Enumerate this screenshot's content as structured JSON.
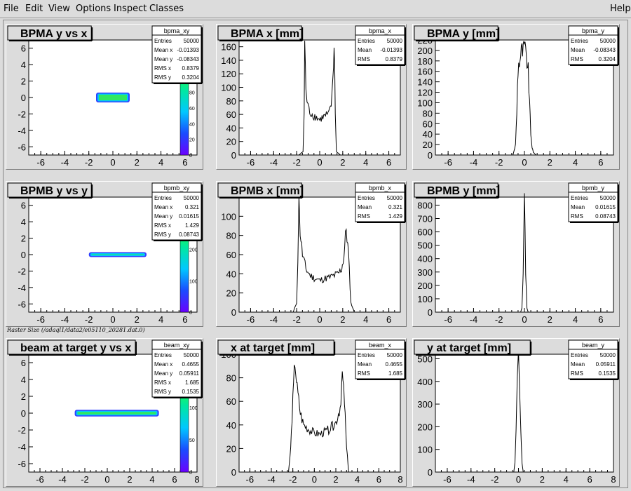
{
  "menu": {
    "file": "File",
    "edit": "Edit",
    "view": "View",
    "options": "Options",
    "inspect": "Inspect",
    "classes": "Classes",
    "help": "Help"
  },
  "canvas_label": "Raster Size (/adaql1/data2/e05110_20281.dat.0)",
  "colors": {
    "pad_bg": "#dcdcdc",
    "frame_bg": "#ffffff",
    "line": "#000000"
  },
  "chart_data": [
    {
      "type": "heatmap",
      "title": "BPMA y vs x",
      "stats_name": "bpma_xy",
      "stats": [
        [
          "Entries",
          "50000"
        ],
        [
          "Mean x",
          "-0.01393"
        ],
        [
          "Mean y",
          "-0.08343"
        ],
        [
          "RMS x",
          "0.8379"
        ],
        [
          "RMS y",
          "0.3204"
        ]
      ],
      "xlim": [
        -7,
        7
      ],
      "ylim": [
        -7,
        7
      ],
      "xticks": [
        "-6",
        "-4",
        "-2",
        "0",
        "2",
        "4",
        "6"
      ],
      "yticks": [
        "-6",
        "-4",
        "-2",
        "0",
        "2",
        "4",
        "6"
      ],
      "blob": {
        "x": [
          -1.4,
          1.4
        ],
        "y": [
          -0.6,
          0.6
        ]
      },
      "palette_ticks": [
        "0",
        "20",
        "40",
        "60",
        "80",
        "100",
        "120"
      ]
    },
    {
      "type": "line",
      "title": "BPMA x [mm]",
      "stats_name": "bpma_x",
      "stats": [
        [
          "Entries",
          "50000"
        ],
        [
          "Mean",
          "-0.01393"
        ],
        [
          "RMS",
          "0.8379"
        ]
      ],
      "xlim": [
        -7,
        7
      ],
      "ylim": [
        0,
        170
      ],
      "xticks": [
        "-6",
        "-4",
        "-2",
        "0",
        "2",
        "4",
        "6"
      ],
      "yticks": [
        "0",
        "20",
        "40",
        "60",
        "80",
        "100",
        "120",
        "140",
        "160"
      ],
      "x": [
        -7,
        -1.8,
        -1.45,
        -1.35,
        -1.3,
        -1.25,
        -1.2,
        -1.1,
        -1.0,
        -0.8,
        -0.5,
        -0.2,
        0,
        0.2,
        0.5,
        0.8,
        1.0,
        1.1,
        1.2,
        1.25,
        1.3,
        1.35,
        1.45,
        1.8,
        7
      ],
      "y": [
        0,
        0,
        5,
        60,
        165,
        130,
        100,
        80,
        70,
        62,
        58,
        55,
        52,
        55,
        58,
        60,
        75,
        95,
        130,
        160,
        140,
        60,
        5,
        0,
        0
      ]
    },
    {
      "type": "line",
      "title": "BPMA y [mm]",
      "stats_name": "bpma_y",
      "stats": [
        [
          "Entries",
          "50000"
        ],
        [
          "Mean",
          "-0.08343"
        ],
        [
          "RMS",
          "0.3204"
        ]
      ],
      "xlim": [
        -7,
        7
      ],
      "ylim": [
        0,
        220
      ],
      "xticks": [
        "-6",
        "-4",
        "-2",
        "0",
        "2",
        "4",
        "6"
      ],
      "yticks": [
        "0",
        "20",
        "40",
        "60",
        "80",
        "100",
        "120",
        "140",
        "160",
        "180",
        "200",
        "220"
      ],
      "x": [
        -7,
        -0.9,
        -0.7,
        -0.6,
        -0.55,
        -0.5,
        -0.4,
        -0.3,
        -0.2,
        -0.1,
        0,
        0.1,
        0.2,
        0.3,
        0.4,
        0.5,
        0.6,
        0.7,
        0.9,
        7
      ],
      "y": [
        0,
        0,
        20,
        80,
        130,
        165,
        180,
        190,
        200,
        195,
        210,
        190,
        180,
        160,
        100,
        40,
        15,
        5,
        0,
        0
      ]
    },
    {
      "type": "heatmap",
      "title": "BPMB y vs y",
      "stats_name": "bpmb_xy",
      "stats": [
        [
          "Entries",
          "50000"
        ],
        [
          "Mean x",
          "0.321"
        ],
        [
          "Mean y",
          "0.01615"
        ],
        [
          "RMS x",
          "1.429"
        ],
        [
          "RMS y",
          "0.08743"
        ]
      ],
      "xlim": [
        -7,
        7
      ],
      "ylim": [
        -7,
        7
      ],
      "xticks": [
        "-6",
        "-4",
        "-2",
        "0",
        "2",
        "4",
        "6"
      ],
      "yticks": [
        "-6",
        "-4",
        "-2",
        "0",
        "2",
        "4",
        "6"
      ],
      "blob": {
        "x": [
          -2.0,
          2.8
        ],
        "y": [
          -0.3,
          0.3
        ]
      },
      "palette_ticks": [
        "0",
        "100",
        "200",
        "300"
      ]
    },
    {
      "type": "line",
      "title": "BPMB x [mm]",
      "stats_name": "bpmb_x",
      "stats": [
        [
          "Entries",
          "50000"
        ],
        [
          "Mean",
          "0.321"
        ],
        [
          "RMS",
          "1.429"
        ]
      ],
      "xlim": [
        -7,
        7
      ],
      "ylim": [
        0,
        120
      ],
      "xticks": [
        "-6",
        "-4",
        "-2",
        "0",
        "2",
        "4",
        "6"
      ],
      "yticks": [
        "0",
        "20",
        "40",
        "60",
        "80",
        "100"
      ],
      "x": [
        -7,
        -2.3,
        -2.0,
        -1.9,
        -1.8,
        -1.7,
        -1.5,
        -1.2,
        -0.8,
        -0.4,
        0,
        0.4,
        0.8,
        1.2,
        1.6,
        1.9,
        2.1,
        2.3,
        2.5,
        2.7,
        3.0,
        7
      ],
      "y": [
        0,
        0,
        10,
        55,
        115,
        85,
        60,
        45,
        38,
        35,
        33,
        35,
        36,
        38,
        40,
        45,
        58,
        88,
        60,
        10,
        0,
        0
      ]
    },
    {
      "type": "line",
      "title": "BPMB y [mm]",
      "stats_name": "bpmb_y",
      "stats": [
        [
          "Entries",
          "50000"
        ],
        [
          "Mean",
          "0.01615"
        ],
        [
          "RMS",
          "0.08743"
        ]
      ],
      "xlim": [
        -7,
        7
      ],
      "ylim": [
        0,
        860
      ],
      "xticks": [
        "-6",
        "-4",
        "-2",
        "0",
        "2",
        "4",
        "6"
      ],
      "yticks": [
        "0",
        "100",
        "200",
        "300",
        "400",
        "500",
        "600",
        "700",
        "800"
      ],
      "x": [
        -7,
        -0.3,
        -0.2,
        -0.1,
        -0.05,
        0,
        0.05,
        0.1,
        0.2,
        0.3,
        7
      ],
      "y": [
        0,
        0,
        30,
        300,
        650,
        830,
        600,
        300,
        30,
        0,
        0
      ]
    },
    {
      "type": "heatmap",
      "title": "beam at target y vs x",
      "stats_name": "beam_xy",
      "stats": [
        [
          "Entries",
          "50000"
        ],
        [
          "Mean x",
          "0.4655"
        ],
        [
          "Mean y",
          "0.05911"
        ],
        [
          "RMS x",
          "1.685"
        ],
        [
          "RMS y",
          "0.1535"
        ]
      ],
      "xlim": [
        -7,
        8
      ],
      "ylim": [
        -7,
        7
      ],
      "xticks": [
        "-6",
        "-4",
        "-2",
        "0",
        "2",
        "4",
        "6",
        "8"
      ],
      "yticks": [
        "-6",
        "-4",
        "-2",
        "0",
        "2",
        "4",
        "6"
      ],
      "blob": {
        "x": [
          -2.9,
          4.6
        ],
        "y": [
          -0.4,
          0.4
        ]
      },
      "palette_ticks": [
        "0",
        "50",
        "100",
        "150"
      ]
    },
    {
      "type": "line",
      "title": "x at target [mm]",
      "stats_name": "beam_x",
      "stats": [
        [
          "Entries",
          "50000"
        ],
        [
          "Mean",
          "0.4655"
        ],
        [
          "RMS",
          "1.685"
        ]
      ],
      "xlim": [
        -7,
        8
      ],
      "ylim": [
        0,
        100
      ],
      "xticks": [
        "-6",
        "-4",
        "-2",
        "0",
        "2",
        "4",
        "6",
        "8"
      ],
      "yticks": [
        "0",
        "20",
        "40",
        "60",
        "80",
        "100"
      ],
      "x": [
        -7,
        -2.4,
        -2.2,
        -2.0,
        -1.8,
        -1.6,
        -1.3,
        -1.0,
        -0.5,
        0,
        0.5,
        1.0,
        1.5,
        2.0,
        2.4,
        2.6,
        2.8,
        3.0,
        3.2,
        7,
        8
      ],
      "y": [
        0,
        0,
        20,
        60,
        95,
        70,
        50,
        40,
        36,
        33,
        32,
        34,
        37,
        42,
        55,
        82,
        60,
        20,
        0,
        0,
        0
      ]
    },
    {
      "type": "line",
      "title": "y at target [mm]",
      "stats_name": "beam_y",
      "stats": [
        [
          "Entries",
          "50000"
        ],
        [
          "Mean",
          "0.05911"
        ],
        [
          "RMS",
          "0.1535"
        ]
      ],
      "xlim": [
        -7,
        8
      ],
      "ylim": [
        0,
        520
      ],
      "xticks": [
        "-6",
        "-4",
        "-2",
        "0",
        "2",
        "4",
        "6",
        "8"
      ],
      "yticks": [
        "0",
        "100",
        "200",
        "300",
        "400",
        "500"
      ],
      "x": [
        -7,
        -0.4,
        -0.3,
        -0.2,
        -0.1,
        0,
        0.1,
        0.2,
        0.3,
        0.4,
        8
      ],
      "y": [
        0,
        0,
        40,
        200,
        420,
        490,
        400,
        200,
        40,
        0,
        0
      ]
    }
  ]
}
